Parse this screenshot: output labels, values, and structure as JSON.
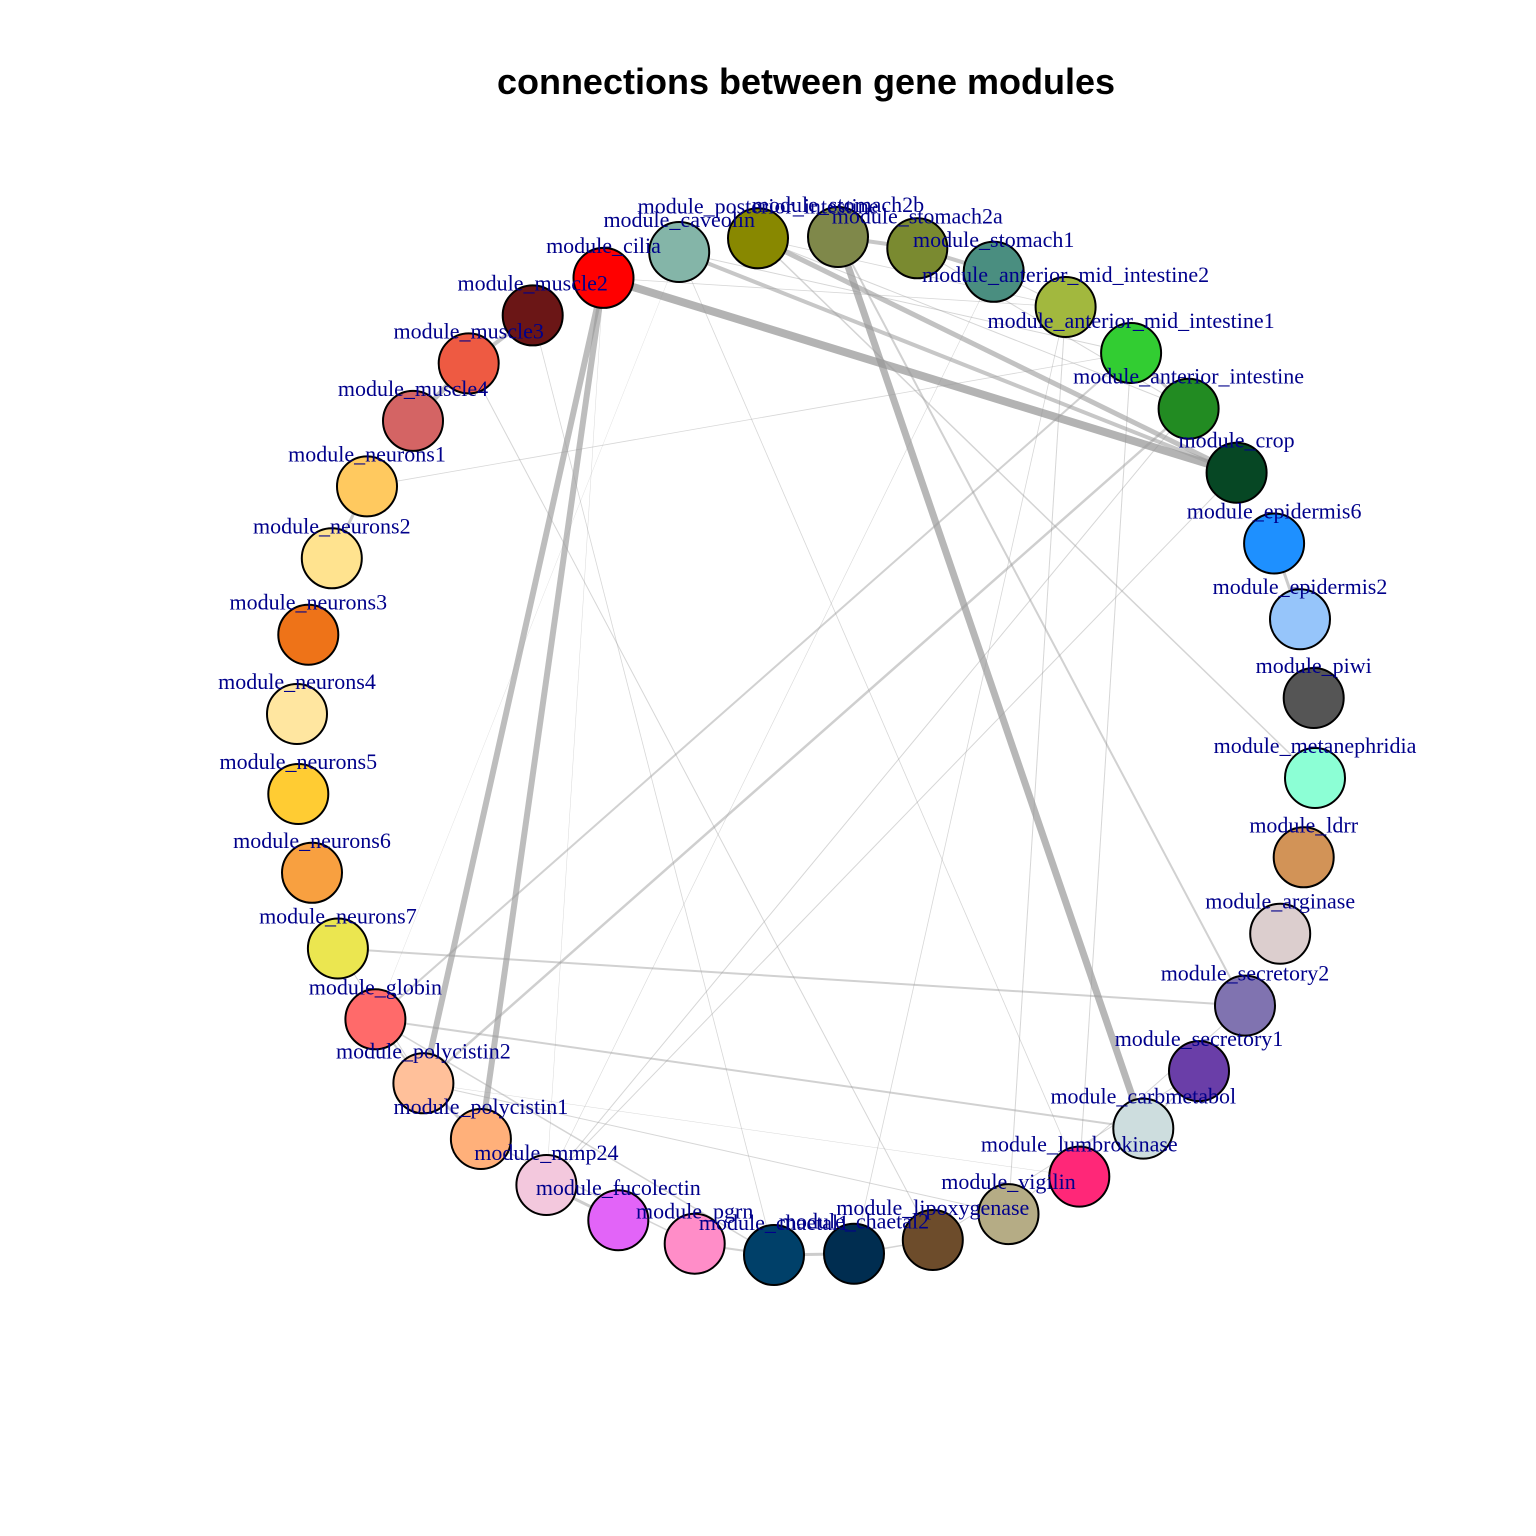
{
  "diagram": {
    "title": "connections between gene modules",
    "nodes": [
      {
        "id": "module_posterior_intestine",
        "label": "module_posterior_intestine",
        "color": "#888800"
      },
      {
        "id": "module_stomach2b",
        "label": "module_stomach2b",
        "color": "#7F884A"
      },
      {
        "id": "module_stomach2a",
        "label": "module_stomach2a",
        "color": "#7A8A30"
      },
      {
        "id": "module_stomach1",
        "label": "module_stomach1",
        "color": "#4A8E80"
      },
      {
        "id": "module_anterior_mid_intestine2",
        "label": "module_anterior_mid_intestine2",
        "color": "#A2B83E"
      },
      {
        "id": "module_anterior_mid_intestine1",
        "label": "module_anterior_mid_intestine1",
        "color": "#32CD32"
      },
      {
        "id": "module_anterior_intestine",
        "label": "module_anterior_intestine",
        "color": "#228B22"
      },
      {
        "id": "module_crop",
        "label": "module_crop",
        "color": "#064724"
      },
      {
        "id": "module_epidermis6",
        "label": "module_epidermis6",
        "color": "#1E90FF"
      },
      {
        "id": "module_epidermis2",
        "label": "module_epidermis2",
        "color": "#96C5FA"
      },
      {
        "id": "module_piwi",
        "label": "module_piwi",
        "color": "#555555"
      },
      {
        "id": "module_metanephridia",
        "label": "module_metanephridia",
        "color": "#8CFFD5"
      },
      {
        "id": "module_ldrr",
        "label": "module_ldrr",
        "color": "#D29357"
      },
      {
        "id": "module_arginase",
        "label": "module_arginase",
        "color": "#DCCECE"
      },
      {
        "id": "module_secretory2",
        "label": "module_secretory2",
        "color": "#8073B0"
      },
      {
        "id": "module_secretory1",
        "label": "module_secretory1",
        "color": "#6A3EA8"
      },
      {
        "id": "module_carbmetabol",
        "label": "module_carbmetabol",
        "color": "#CDDDDE"
      },
      {
        "id": "module_lumbrokinase",
        "label": "module_lumbrokinase",
        "color": "#FF2778"
      },
      {
        "id": "module_vigilin",
        "label": "module_vigilin",
        "color": "#B5AC85"
      },
      {
        "id": "module_lipoxygenase",
        "label": "module_lipoxygenase",
        "color": "#6D4C2B"
      },
      {
        "id": "module_chaetal2",
        "label": "module_chaetal2",
        "color": "#002D50"
      },
      {
        "id": "module_chaetal1",
        "label": "module_chaetal1",
        "color": "#004069"
      },
      {
        "id": "module_pgrn",
        "label": "module_pgrn",
        "color": "#FF8DC8"
      },
      {
        "id": "module_fucolectin",
        "label": "module_fucolectin",
        "color": "#E264F8"
      },
      {
        "id": "module_mmp24",
        "label": "module_mmp24",
        "color": "#F3C8DD"
      },
      {
        "id": "module_polycistin1",
        "label": "module_polycistin1",
        "color": "#FFB07A"
      },
      {
        "id": "module_polycistin2",
        "label": "module_polycistin2",
        "color": "#FFC09A"
      },
      {
        "id": "module_globin",
        "label": "module_globin",
        "color": "#FF6A6A"
      },
      {
        "id": "module_neurons7",
        "label": "module_neurons7",
        "color": "#EBE650"
      },
      {
        "id": "module_neurons6",
        "label": "module_neurons6",
        "color": "#F8A040"
      },
      {
        "id": "module_neurons5",
        "label": "module_neurons5",
        "color": "#FFCC33"
      },
      {
        "id": "module_neurons4",
        "label": "module_neurons4",
        "color": "#FFE6A0"
      },
      {
        "id": "module_neurons3",
        "label": "module_neurons3",
        "color": "#EE7318"
      },
      {
        "id": "module_neurons2",
        "label": "module_neurons2",
        "color": "#FFE38F"
      },
      {
        "id": "module_neurons1",
        "label": "module_neurons1",
        "color": "#FFC95F"
      },
      {
        "id": "module_muscle4",
        "label": "module_muscle4",
        "color": "#D46464"
      },
      {
        "id": "module_muscle3",
        "label": "module_muscle3",
        "color": "#EE5A42"
      },
      {
        "id": "module_muscle2",
        "label": "module_muscle2",
        "color": "#6B1616"
      },
      {
        "id": "module_cilia",
        "label": "module_cilia",
        "color": "#FF0000"
      },
      {
        "id": "module_caveolin",
        "label": "module_caveolin",
        "color": "#84B5A8"
      }
    ],
    "edges": [
      {
        "source": "module_cilia",
        "target": "module_crop",
        "weight": 8
      },
      {
        "source": "module_cilia",
        "target": "module_polycistin2",
        "weight": 6
      },
      {
        "source": "module_cilia",
        "target": "module_polycistin1",
        "weight": 6
      },
      {
        "source": "module_stomach2b",
        "target": "module_carbmetabol",
        "weight": 7
      },
      {
        "source": "module_posterior_intestine",
        "target": "module_crop",
        "weight": 5
      },
      {
        "source": "module_caveolin",
        "target": "module_crop",
        "weight": 4
      },
      {
        "source": "module_stomach2a",
        "target": "module_stomach1",
        "weight": 4
      },
      {
        "source": "module_stomach2b",
        "target": "module_stomach2a",
        "weight": 4
      },
      {
        "source": "module_muscle2",
        "target": "module_muscle3",
        "weight": 4
      },
      {
        "source": "module_muscle3",
        "target": "module_muscle4",
        "weight": 5
      },
      {
        "source": "module_neurons1",
        "target": "module_neurons2",
        "weight": 3
      },
      {
        "source": "module_anterior_mid_intestine1",
        "target": "module_anterior_intestine",
        "weight": 3
      },
      {
        "source": "module_epidermis6",
        "target": "module_epidermis2",
        "weight": 3
      },
      {
        "source": "module_anterior_intestine",
        "target": "module_polycistin2",
        "weight": 2.5
      },
      {
        "source": "module_anterior_mid_intestine1",
        "target": "module_globin",
        "weight": 2
      },
      {
        "source": "module_neurons7",
        "target": "module_secretory2",
        "weight": 2
      },
      {
        "source": "module_globin",
        "target": "module_carbmetabol",
        "weight": 2
      },
      {
        "source": "module_stomach2b",
        "target": "module_secretory2",
        "weight": 2
      },
      {
        "source": "module_neurons1",
        "target": "module_anterior_mid_intestine1",
        "weight": 0.8
      },
      {
        "source": "module_muscle3",
        "target": "module_lipoxygenase",
        "weight": 1
      },
      {
        "source": "module_muscle2",
        "target": "module_chaetal1",
        "weight": 0.8
      },
      {
        "source": "module_anterior_mid_intestine2",
        "target": "module_vigilin",
        "weight": 1
      },
      {
        "source": "module_anterior_mid_intestine1",
        "target": "module_lumbrokinase",
        "weight": 1
      },
      {
        "source": "module_anterior_intestine",
        "target": "module_mmp24",
        "weight": 1
      },
      {
        "source": "module_crop",
        "target": "module_mmp24",
        "weight": 1
      },
      {
        "source": "module_caveolin",
        "target": "module_lumbrokinase",
        "weight": 0.8
      },
      {
        "source": "module_posterior_intestine",
        "target": "module_metanephridia",
        "weight": 1.5
      },
      {
        "source": "module_stomach2a",
        "target": "module_anterior_intestine",
        "weight": 1
      },
      {
        "source": "module_caveolin",
        "target": "module_anterior_mid_intestine1",
        "weight": 1
      },
      {
        "source": "module_stomach1",
        "target": "module_anterior_mid_intestine2",
        "weight": 1
      },
      {
        "source": "module_posterior_intestine",
        "target": "module_anterior_intestine",
        "weight": 1
      },
      {
        "source": "module_cilia",
        "target": "module_anterior_mid_intestine2",
        "weight": 0.8
      },
      {
        "source": "module_cilia",
        "target": "module_mmp24",
        "weight": 0.5
      },
      {
        "source": "module_polycistin2",
        "target": "module_vigilin",
        "weight": 1
      },
      {
        "source": "module_globin",
        "target": "module_chaetal1",
        "weight": 1.5
      },
      {
        "source": "module_polycistin1",
        "target": "module_pgrn",
        "weight": 1.5
      },
      {
        "source": "module_mmp24",
        "target": "module_fucolectin",
        "weight": 3
      },
      {
        "source": "module_pgrn",
        "target": "module_chaetal1",
        "weight": 2
      },
      {
        "source": "module_chaetal1",
        "target": "module_chaetal2",
        "weight": 3
      },
      {
        "source": "module_chaetal2",
        "target": "module_lipoxygenase",
        "weight": 1.5
      },
      {
        "source": "module_lipoxygenase",
        "target": "module_secretory1",
        "weight": 1
      },
      {
        "source": "module_vigilin",
        "target": "module_secretory2",
        "weight": 1
      },
      {
        "source": "module_polycistin2",
        "target": "module_lumbrokinase",
        "weight": 0.5
      },
      {
        "source": "module_neurons7",
        "target": "module_polycistin2",
        "weight": 1
      },
      {
        "source": "module_polycistin2",
        "target": "module_polycistin1",
        "weight": 3
      },
      {
        "source": "module_globin",
        "target": "module_polycistin2",
        "weight": 2
      },
      {
        "source": "module_anterior_mid_intestine2",
        "target": "module_chaetal2",
        "weight": 0.8
      },
      {
        "source": "module_secretory1",
        "target": "module_carbmetabol",
        "weight": 1.5
      },
      {
        "source": "module_stomach1",
        "target": "module_mmp24",
        "weight": 0.6
      },
      {
        "source": "module_caveolin",
        "target": "module_globin",
        "weight": 0.4
      },
      {
        "source": "module_posterior_intestine",
        "target": "module_anterior_mid_intestine2",
        "weight": 0.8
      }
    ]
  }
}
